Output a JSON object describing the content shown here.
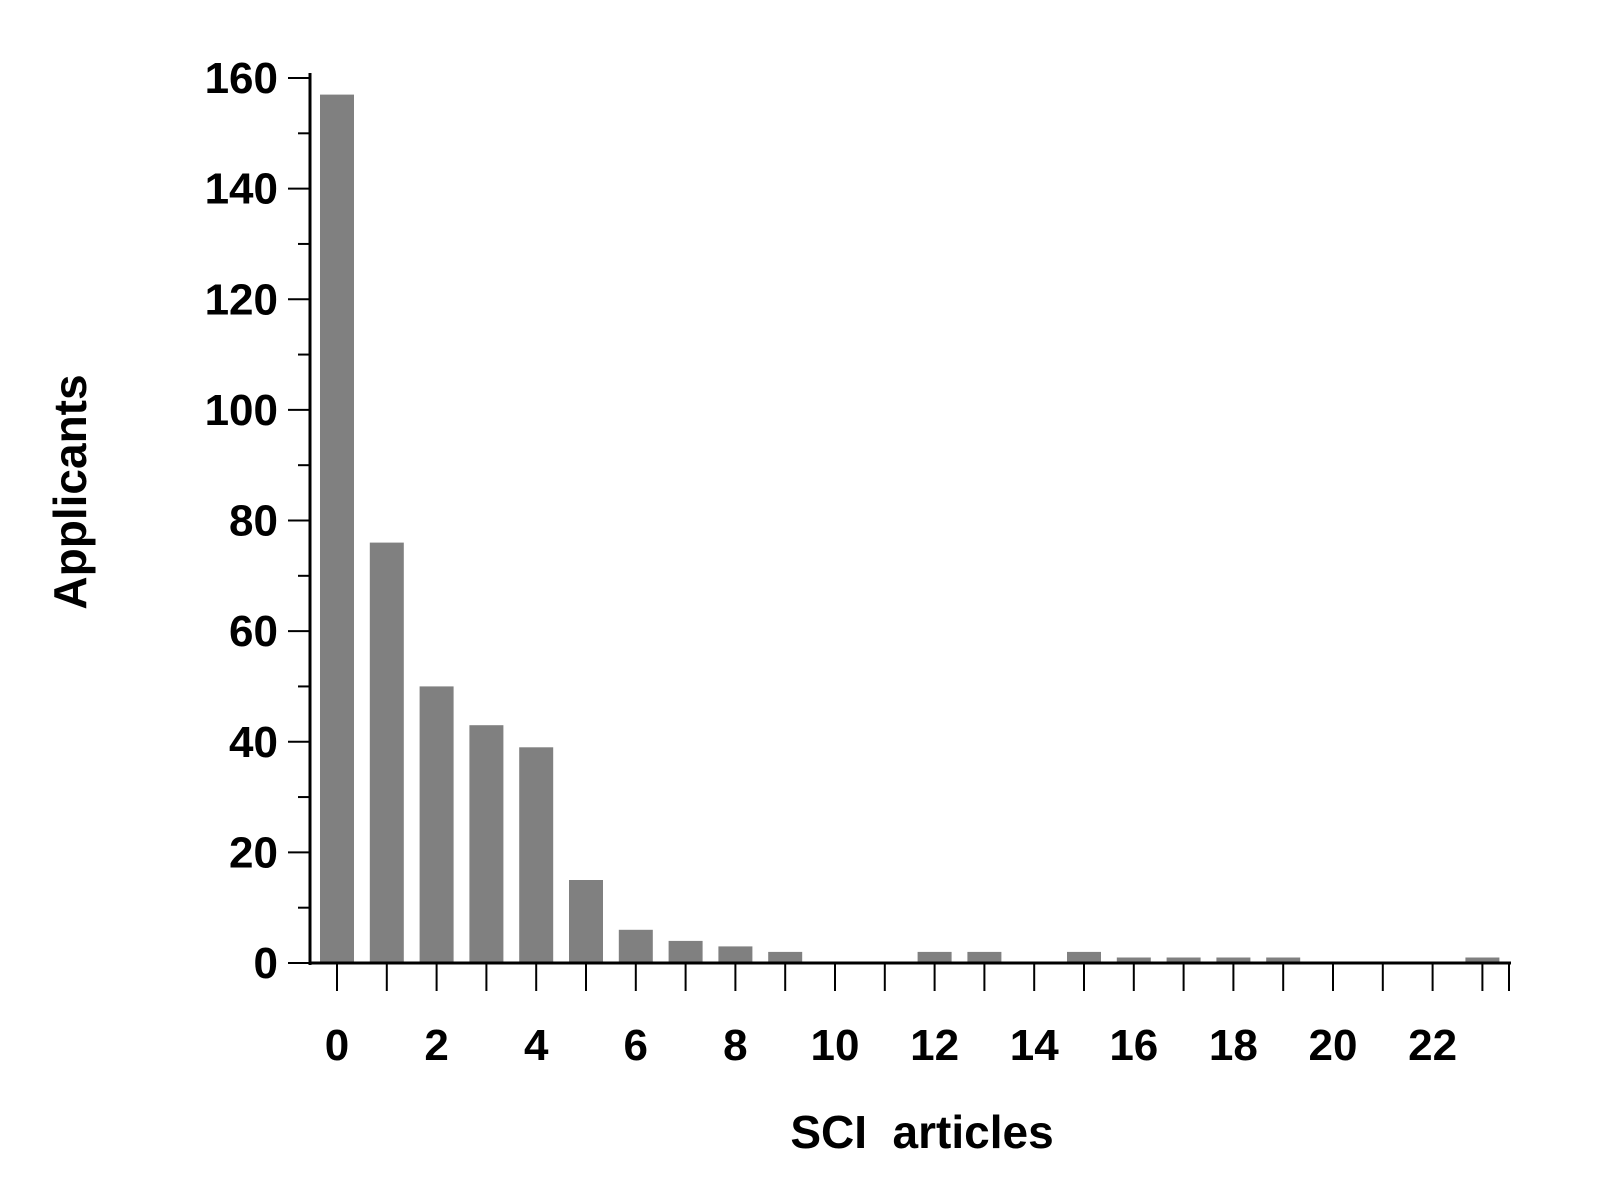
{
  "chart_data": {
    "type": "bar",
    "xlabel": "SCI  articles",
    "ylabel": "Applicants",
    "x": [
      0,
      1,
      2,
      3,
      4,
      5,
      6,
      7,
      8,
      9,
      10,
      11,
      12,
      13,
      14,
      15,
      16,
      17,
      18,
      19,
      20,
      21,
      22,
      23
    ],
    "values": [
      157,
      76,
      50,
      43,
      39,
      15,
      6,
      4,
      3,
      2,
      0,
      0,
      2,
      2,
      0,
      2,
      1,
      1,
      1,
      1,
      0,
      0,
      0,
      1
    ],
    "xticks": [
      0,
      2,
      4,
      6,
      8,
      10,
      12,
      14,
      16,
      18,
      20,
      22
    ],
    "yticks": [
      0,
      20,
      40,
      60,
      80,
      100,
      120,
      140,
      160
    ],
    "ylim": [
      0,
      160
    ],
    "grid": false,
    "colors": {
      "bar": "#808080",
      "axis": "#000000"
    }
  }
}
